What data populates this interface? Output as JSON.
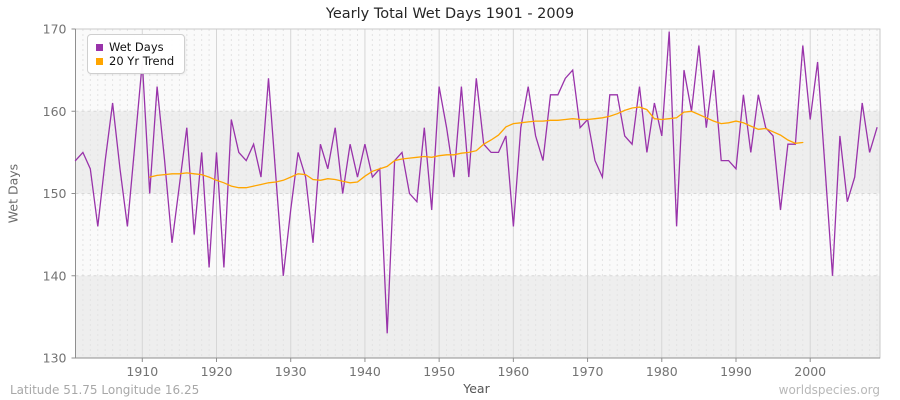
{
  "header": {
    "title": "Yearly Total Wet Days 1901 - 2009"
  },
  "legend": {
    "items": [
      {
        "label": "Wet Days",
        "color": "#9933AA"
      },
      {
        "label": "20 Yr Trend",
        "color": "#FFA500"
      }
    ]
  },
  "footer": {
    "location": "Latitude 51.75 Longitude 16.25",
    "watermark": "worldspecies.org"
  },
  "chart_data": {
    "type": "line",
    "title": "Yearly Total Wet Days 1901 - 2009",
    "xlabel": "Year",
    "ylabel": "Wet Days",
    "xlim": [
      1901,
      2009
    ],
    "ylim": [
      130,
      170
    ],
    "x_ticks": [
      1910,
      1920,
      1930,
      1940,
      1950,
      1960,
      1970,
      1980,
      1990,
      2000
    ],
    "y_ticks": [
      130,
      140,
      150,
      160,
      170
    ],
    "grid": "vertical dashed line per year, solid line per decade, horizontal dashed at 140/150/160",
    "shaded_bands": [
      [
        130,
        140
      ],
      [
        150,
        160
      ]
    ],
    "legend_position": "top-left",
    "colors": {
      "wet_days": "#9933AA",
      "trend": "#FFA500",
      "band": "#eeeeee",
      "plot_bg": "#fafafa"
    },
    "series": [
      {
        "name": "Wet Days",
        "color": "#9933AA",
        "x_start": 1901,
        "values": [
          154,
          155,
          153,
          146,
          154,
          161,
          153,
          146,
          156,
          166,
          150,
          163,
          154,
          144,
          151,
          158,
          145,
          155,
          141,
          155,
          141,
          159,
          155,
          154,
          156,
          152,
          164,
          152,
          140,
          148,
          155,
          152,
          144,
          156,
          153,
          158,
          150,
          156,
          152,
          156,
          152,
          153,
          133,
          154,
          155,
          150,
          149,
          158,
          148,
          163,
          158,
          152,
          163,
          152,
          164,
          156,
          155,
          155,
          157,
          146,
          158,
          163,
          157,
          154,
          162,
          162,
          164,
          165,
          158,
          159,
          154,
          152,
          162,
          162,
          157,
          156,
          163,
          155,
          161,
          157,
          169.7,
          146,
          165,
          160,
          168,
          158,
          165,
          154,
          154,
          153,
          162,
          155,
          162,
          158,
          157,
          148,
          156,
          156,
          168,
          159,
          166,
          153,
          140,
          157,
          149,
          152,
          161,
          155,
          158
        ]
      },
      {
        "name": "20 Yr Trend",
        "color": "#FFA500",
        "x_start": 1911,
        "values": [
          152.0,
          152.2,
          152.3,
          152.4,
          152.4,
          152.5,
          152.4,
          152.3,
          152.0,
          151.6,
          151.3,
          150.9,
          150.7,
          150.7,
          150.9,
          151.1,
          151.3,
          151.4,
          151.6,
          152.0,
          152.4,
          152.3,
          151.7,
          151.6,
          151.8,
          151.7,
          151.5,
          151.3,
          151.4,
          152.1,
          152.7,
          153.0,
          153.3,
          154.0,
          154.2,
          154.3,
          154.4,
          154.5,
          154.4,
          154.6,
          154.7,
          154.7,
          154.9,
          155.0,
          155.2,
          156.0,
          156.5,
          157.1,
          158.1,
          158.5,
          158.6,
          158.7,
          158.8,
          158.8,
          158.9,
          158.9,
          159.0,
          159.1,
          159.0,
          159.0,
          159.1,
          159.2,
          159.4,
          159.7,
          160.1,
          160.4,
          160.5,
          160.2,
          159.1,
          159.0,
          159.1,
          159.2,
          159.9,
          160.0,
          159.6,
          159.2,
          158.8,
          158.5,
          158.6,
          158.8,
          158.6,
          158.2,
          157.8,
          157.9,
          157.5,
          157.1,
          156.5,
          156.1,
          156.2
        ]
      }
    ]
  }
}
